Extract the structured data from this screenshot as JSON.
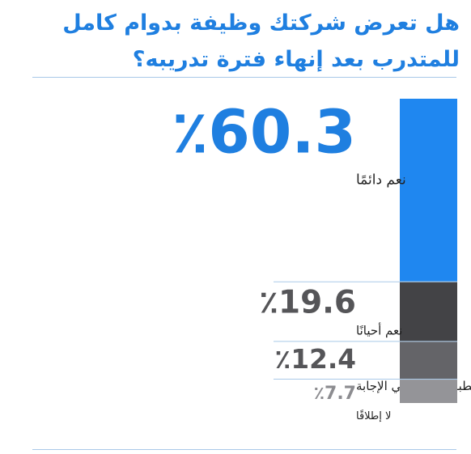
{
  "title_line1": "هل تعرض شركتك وظيفة بدوام كامل",
  "title_line2": "للمتدرب بعد إنهاء فترة تدريبه؟",
  "chart_data": {
    "type": "bar",
    "orientation": "stacked-vertical",
    "unit": "%",
    "categories": [
      "نعم دائمًا",
      "نعم أحيانًا",
      "لا ينطبق / لا يمكنني الإجابة",
      "لا إطلاقًا"
    ],
    "values": [
      60.3,
      19.6,
      12.4,
      7.7
    ],
    "value_labels": [
      "٪60.3",
      "٪19.6",
      "٪12.4",
      "٪7.7"
    ],
    "colors": [
      "#1f87f0",
      "#434346",
      "#646468",
      "#949498"
    ],
    "label_colors": [
      "#1f7fe0",
      "#555558",
      "#555558",
      "#8c8c90"
    ]
  }
}
